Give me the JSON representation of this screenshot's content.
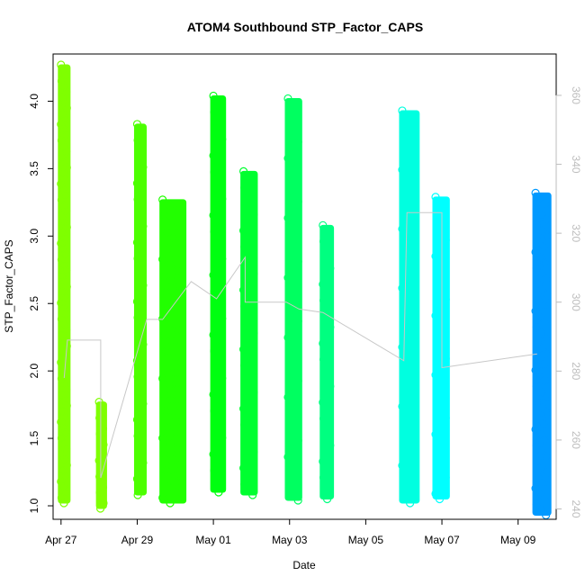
{
  "chart_data": {
    "type": "scatter",
    "title": "ATOM4 Southbound STP_Factor_CAPS",
    "xlabel": "Date",
    "ylabel": "STP_Factor_CAPS",
    "xlim": [
      "2023-04-26T19:00",
      "2023-05-10T00:00"
    ],
    "ylim": [
      0.9,
      4.35
    ],
    "y2lim": [
      237,
      372
    ],
    "x_ticks": [
      {
        "date": "2023-04-27",
        "label": "Apr 27"
      },
      {
        "date": "2023-04-29",
        "label": "Apr 29"
      },
      {
        "date": "2023-05-01",
        "label": "May 01"
      },
      {
        "date": "2023-05-03",
        "label": "May 03"
      },
      {
        "date": "2023-05-05",
        "label": "May 05"
      },
      {
        "date": "2023-05-07",
        "label": "May 07"
      },
      {
        "date": "2023-05-09",
        "label": "May 09"
      }
    ],
    "y_ticks": [
      "1.0",
      "1.5",
      "2.0",
      "2.5",
      "3.0",
      "3.5",
      "4.0"
    ],
    "y_values": [
      1.0,
      1.5,
      2.0,
      2.5,
      3.0,
      3.5,
      4.0
    ],
    "y2_ticks": [
      "240",
      "260",
      "280",
      "300",
      "320",
      "340",
      "360"
    ],
    "y2_values": [
      240,
      260,
      280,
      300,
      320,
      340,
      360
    ],
    "grid": false,
    "legend": "none",
    "secondary_line_color": "#c8c8c8",
    "point_marker": "open-circle",
    "segments": [
      {
        "start": "2023-04-27T00:00",
        "end": "2023-04-27T04:00",
        "ymin": 1.02,
        "ymax": 4.27,
        "color": "#7FFF00"
      },
      {
        "start": "2023-04-28T00:00",
        "end": "2023-04-28T03:00",
        "ymin": 0.98,
        "ymax": 1.77,
        "color": "#7FFF00"
      },
      {
        "start": "2023-04-29T00:00",
        "end": "2023-04-29T04:00",
        "ymin": 1.08,
        "ymax": 3.83,
        "color": "#4CFF00"
      },
      {
        "start": "2023-04-29T16:00",
        "end": "2023-04-30T05:00",
        "ymin": 1.02,
        "ymax": 3.27,
        "color": "#22FF00"
      },
      {
        "start": "2023-05-01T00:00",
        "end": "2023-05-01T06:00",
        "ymin": 1.1,
        "ymax": 4.04,
        "color": "#00FF10"
      },
      {
        "start": "2023-05-01T19:00",
        "end": "2023-05-02T02:00",
        "ymin": 1.08,
        "ymax": 3.48,
        "color": "#00FF30"
      },
      {
        "start": "2023-05-02T23:00",
        "end": "2023-05-03T06:00",
        "ymin": 1.04,
        "ymax": 4.02,
        "color": "#00FF60"
      },
      {
        "start": "2023-05-03T21:00",
        "end": "2023-05-04T02:00",
        "ymin": 1.05,
        "ymax": 3.08,
        "color": "#00FF80"
      },
      {
        "start": "2023-05-05T23:00",
        "end": "2023-05-06T08:00",
        "ymin": 1.02,
        "ymax": 3.93,
        "color": "#00FFE0"
      },
      {
        "start": "2023-05-06T20:00",
        "end": "2023-05-07T03:00",
        "ymin": 1.05,
        "ymax": 3.29,
        "color": "#00FFFF"
      },
      {
        "start": "2023-05-09T11:00",
        "end": "2023-05-09T19:00",
        "ymin": 0.93,
        "ymax": 3.32,
        "color": "#0099FF"
      }
    ],
    "gray_line_y2": [
      {
        "t": "2023-04-27T02:00",
        "v": 278
      },
      {
        "t": "2023-04-27T04:00",
        "v": 289
      },
      {
        "t": "2023-04-28T01:00",
        "v": 289
      },
      {
        "t": "2023-04-28T01:00",
        "v": 249
      },
      {
        "t": "2023-04-29T06:00",
        "v": 295
      },
      {
        "t": "2023-04-29T16:00",
        "v": 295
      },
      {
        "t": "2023-04-30T10:00",
        "v": 306
      },
      {
        "t": "2023-05-01T02:00",
        "v": 301
      },
      {
        "t": "2023-05-01T20:00",
        "v": 313
      },
      {
        "t": "2023-05-01T20:00",
        "v": 300
      },
      {
        "t": "2023-05-02T22:00",
        "v": 300
      },
      {
        "t": "2023-05-03T06:00",
        "v": 298
      },
      {
        "t": "2023-05-03T21:00",
        "v": 297
      },
      {
        "t": "2023-05-06T00:00",
        "v": 283
      },
      {
        "t": "2023-05-06T02:00",
        "v": 326
      },
      {
        "t": "2023-05-07T00:00",
        "v": 326
      },
      {
        "t": "2023-05-07T00:00",
        "v": 281
      },
      {
        "t": "2023-05-09T12:00",
        "v": 285
      }
    ]
  }
}
